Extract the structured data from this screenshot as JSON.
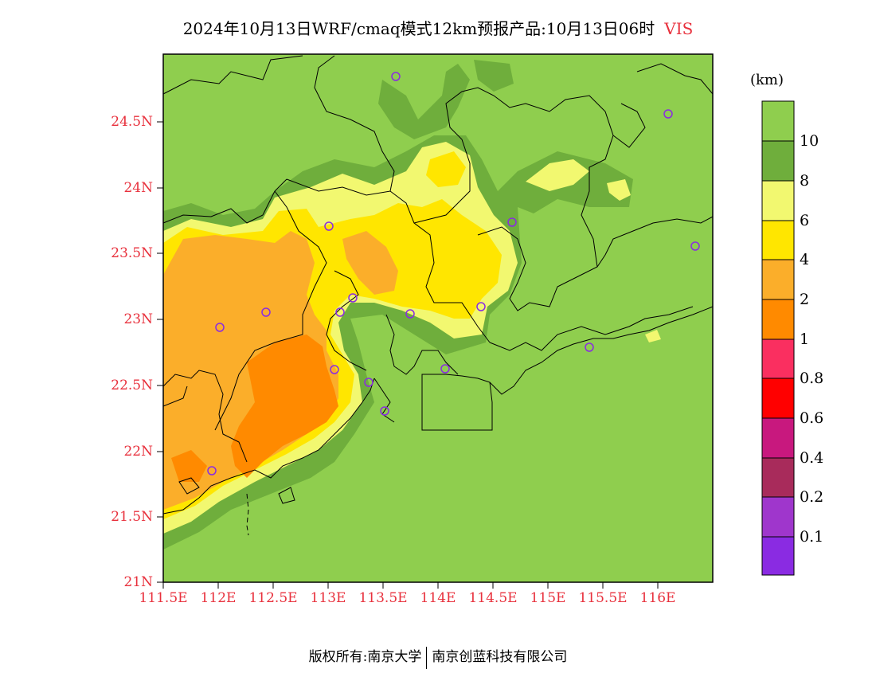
{
  "title": {
    "text": "2024年10月13日WRF/cmaq模式12km预报产品:10月13日06时",
    "variable": "VIS"
  },
  "axes": {
    "lat_labels": [
      "24.5N",
      "24N",
      "23.5N",
      "23N",
      "22.5N",
      "22N",
      "21.5N",
      "21N"
    ],
    "lon_labels": [
      "111.5E",
      "112E",
      "112.5E",
      "113E",
      "113.5E",
      "114E",
      "114.5E",
      "115E",
      "115.5E",
      "116E"
    ],
    "label_color": "#e8313d"
  },
  "colorbar": {
    "unit": "(km)",
    "labels": [
      "10",
      "8",
      "6",
      "4",
      "2",
      "1",
      "0.8",
      "0.6",
      "0.4",
      "0.2",
      "0.1"
    ],
    "colors": [
      "#8fce4e",
      "#6fae3c",
      "#f2f870",
      "#ffe600",
      "#fbae2a",
      "#ff8a00",
      "#fa2f60",
      "#ff0000",
      "#c8187e",
      "#a82b5b",
      "#9f36cc",
      "#8a2be2"
    ]
  },
  "stations": {
    "marker": "purple-circle",
    "color": "#8a2be2"
  },
  "credit": {
    "left": "版权所有:南京大学",
    "right": "南京创蓝科技有限公司"
  }
}
